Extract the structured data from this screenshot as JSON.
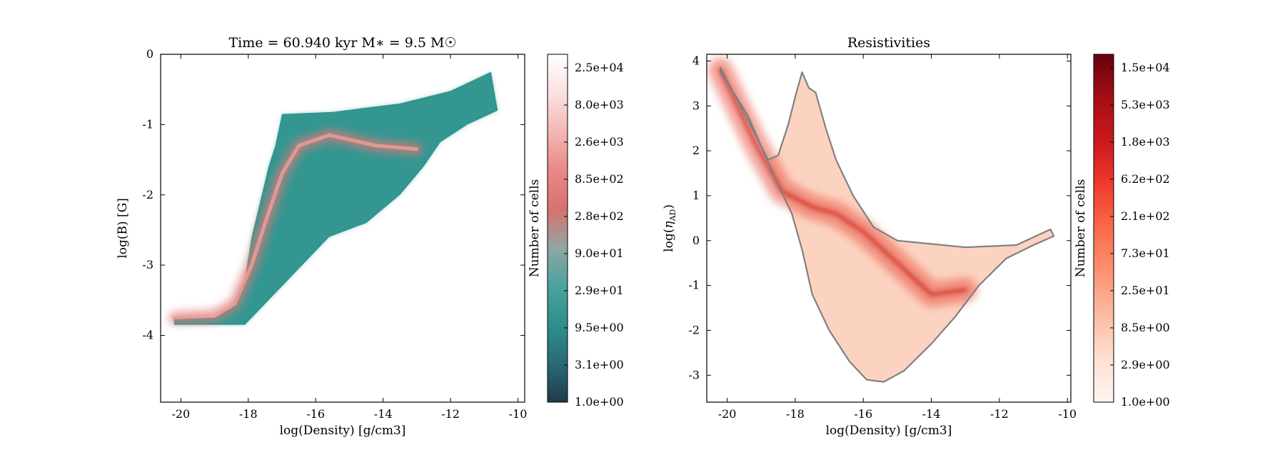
{
  "chart_data": [
    {
      "type": "heatmap",
      "title": "Time = 60.940 kyr    M$_*$ = 9.5 M$_\\odot$",
      "title_display": "Time = 60.940 kyr    M∗ = 9.5 M☉",
      "xlabel": "log(Density) [g/cm3]",
      "ylabel": "log(B) [G]",
      "xlim": [
        -20.6,
        -9.8
      ],
      "ylim": [
        -4.95,
        0
      ],
      "xticks": [
        "-20",
        "-18",
        "-16",
        "-14",
        "-12",
        "-10"
      ],
      "yticks": [
        "0",
        "-1",
        "-2",
        "-3",
        "-4"
      ],
      "colorbar": {
        "label": "Number of cells",
        "scale": "log",
        "ticks": [
          "2.5e+04",
          "8.0e+03",
          "2.6e+03",
          "8.5e+02",
          "2.8e+02",
          "9.0e+01",
          "2.9e+01",
          "9.5e+00",
          "3.1e+00",
          "1.0e+00"
        ],
        "colors": [
          "#1f3b4d",
          "#2a6a72",
          "#2f8f8b",
          "#4aa39f",
          "#8fa6a3",
          "#d9716f",
          "#e88a87",
          "#f3b7b5",
          "#fbe2e1",
          "#ffffff"
        ]
      },
      "region_outline": [
        [
          -20.2,
          -3.75
        ],
        [
          -19.0,
          -3.75
        ],
        [
          -18.5,
          -3.6
        ],
        [
          -18.1,
          -3.2
        ],
        [
          -17.9,
          -2.6
        ],
        [
          -17.6,
          -2.0
        ],
        [
          -17.4,
          -1.6
        ],
        [
          -17.2,
          -1.3
        ],
        [
          -17.0,
          -0.85
        ],
        [
          -15.5,
          -0.82
        ],
        [
          -13.5,
          -0.7
        ],
        [
          -12.0,
          -0.52
        ],
        [
          -10.8,
          -0.25
        ],
        [
          -10.6,
          -0.8
        ],
        [
          -11.5,
          -1.0
        ],
        [
          -12.3,
          -1.25
        ],
        [
          -12.8,
          -1.6
        ],
        [
          -13.5,
          -2.0
        ],
        [
          -14.5,
          -2.4
        ],
        [
          -15.6,
          -2.6
        ],
        [
          -16.4,
          -3.0
        ],
        [
          -17.0,
          -3.3
        ],
        [
          -17.6,
          -3.6
        ],
        [
          -18.1,
          -3.85
        ],
        [
          -19.0,
          -3.85
        ],
        [
          -20.2,
          -3.85
        ]
      ],
      "ridge": [
        [
          -20.2,
          -3.75
        ],
        [
          -19.0,
          -3.72
        ],
        [
          -18.4,
          -3.55
        ],
        [
          -17.9,
          -3.0
        ],
        [
          -17.5,
          -2.4
        ],
        [
          -17.0,
          -1.7
        ],
        [
          -16.5,
          -1.3
        ],
        [
          -15.6,
          -1.15
        ],
        [
          -14.2,
          -1.3
        ],
        [
          -13.0,
          -1.35
        ]
      ]
    },
    {
      "type": "heatmap",
      "title": "Resistivities",
      "xlabel": "log(Density) [g/cm3]",
      "ylabel": "log(ηAD)",
      "ylabel_main": "log(",
      "ylabel_sym": "η",
      "ylabel_sub": "AD",
      "ylabel_close": ")",
      "xlim": [
        -20.6,
        -9.9
      ],
      "ylim": [
        -3.6,
        4.15
      ],
      "xticks": [
        "-20",
        "-18",
        "-16",
        "-14",
        "-12",
        "-10"
      ],
      "yticks": [
        "4",
        "3",
        "2",
        "1",
        "0",
        "-1",
        "-2",
        "-3"
      ],
      "colorbar": {
        "label": "Number of cells",
        "scale": "log",
        "ticks": [
          "1.5e+04",
          "5.3e+03",
          "1.8e+03",
          "6.2e+02",
          "2.1e+02",
          "7.3e+01",
          "2.5e+01",
          "8.5e+00",
          "2.9e+00",
          "1.0e+00"
        ],
        "colors": [
          "#fff5f0",
          "#fee0d2",
          "#fcbba1",
          "#fc9272",
          "#fb6a4a",
          "#ef3b2c",
          "#cb181d",
          "#a50f15",
          "#67000d"
        ]
      },
      "contour_color": "#808080",
      "region_outline": [
        [
          -20.2,
          3.85
        ],
        [
          -19.2,
          2.4
        ],
        [
          -18.8,
          1.8
        ],
        [
          -18.5,
          1.9
        ],
        [
          -18.2,
          2.6
        ],
        [
          -18.0,
          3.2
        ],
        [
          -17.8,
          3.75
        ],
        [
          -17.6,
          3.4
        ],
        [
          -17.4,
          3.3
        ],
        [
          -17.1,
          2.5
        ],
        [
          -16.8,
          1.8
        ],
        [
          -16.3,
          1.0
        ],
        [
          -15.7,
          0.3
        ],
        [
          -15.0,
          0.0
        ],
        [
          -13.0,
          -0.15
        ],
        [
          -11.5,
          -0.1
        ],
        [
          -10.5,
          0.25
        ],
        [
          -10.4,
          0.1
        ],
        [
          -11.0,
          -0.1
        ],
        [
          -11.8,
          -0.4
        ],
        [
          -12.6,
          -1.0
        ],
        [
          -13.3,
          -1.7
        ],
        [
          -14.0,
          -2.3
        ],
        [
          -14.8,
          -2.9
        ],
        [
          -15.4,
          -3.15
        ],
        [
          -15.9,
          -3.1
        ],
        [
          -16.4,
          -2.7
        ],
        [
          -17.0,
          -2.0
        ],
        [
          -17.5,
          -1.2
        ],
        [
          -17.8,
          -0.2
        ],
        [
          -18.1,
          0.6
        ],
        [
          -18.6,
          1.4
        ],
        [
          -19.4,
          2.8
        ],
        [
          -20.2,
          3.75
        ]
      ],
      "ridge": [
        [
          -20.2,
          3.8
        ],
        [
          -19.2,
          2.2
        ],
        [
          -18.4,
          1.1
        ],
        [
          -17.5,
          0.75
        ],
        [
          -16.8,
          0.6
        ],
        [
          -16.0,
          0.2
        ],
        [
          -15.0,
          -0.5
        ],
        [
          -14.0,
          -1.2
        ],
        [
          -13.0,
          -1.1
        ]
      ]
    }
  ]
}
